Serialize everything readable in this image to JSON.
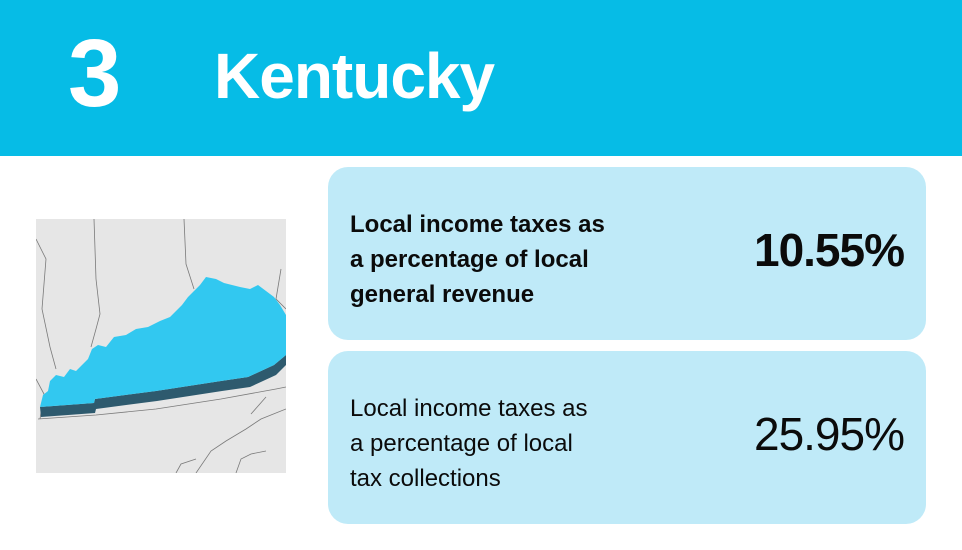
{
  "header": {
    "rank": "3",
    "state": "Kentucky",
    "banner_color": "#06bce6"
  },
  "map": {
    "highlight_color": "#32c8f0",
    "base_color": "#e6e6e6"
  },
  "stats": [
    {
      "label_lines": [
        "Local income taxes as",
        "a percentage of local",
        "general revenue"
      ],
      "value": "10.55%"
    },
    {
      "label_lines": [
        "Local income taxes as",
        "a percentage of local",
        "tax collections"
      ],
      "value": "25.95%"
    }
  ]
}
